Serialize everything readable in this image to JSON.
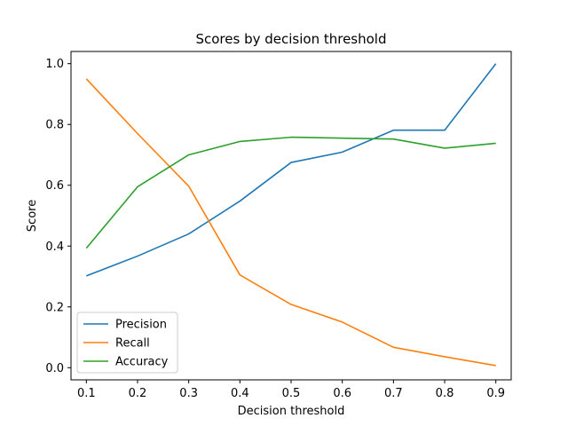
{
  "chart_data": {
    "type": "line",
    "title": "Scores by decision threshold",
    "xlabel": "Decision threshold",
    "ylabel": "Score",
    "x": [
      0.1,
      0.2,
      0.3,
      0.4,
      0.5,
      0.6,
      0.7,
      0.8,
      0.9
    ],
    "x_tick_labels": [
      "0.1",
      "0.2",
      "0.3",
      "0.4",
      "0.5",
      "0.6",
      "0.7",
      "0.8",
      "0.9"
    ],
    "xlim": [
      0.07,
      0.93
    ],
    "ylim": [
      -0.04,
      1.04
    ],
    "y_ticks": [
      0.0,
      0.2,
      0.4,
      0.6,
      0.8,
      1.0
    ],
    "y_tick_labels": [
      "0.0",
      "0.2",
      "0.4",
      "0.6",
      "0.8",
      "1.0"
    ],
    "grid": false,
    "legend_position": "lower-left",
    "series": [
      {
        "name": "Precision",
        "color": "#1f77b4",
        "values": [
          0.302,
          0.367,
          0.44,
          0.548,
          0.675,
          0.709,
          0.781,
          0.781,
          1.0
        ]
      },
      {
        "name": "Recall",
        "color": "#ff7f0e",
        "values": [
          0.95,
          0.77,
          0.597,
          0.305,
          0.208,
          0.15,
          0.067,
          0.036,
          0.007
        ]
      },
      {
        "name": "Accuracy",
        "color": "#2ca02c",
        "values": [
          0.393,
          0.595,
          0.7,
          0.744,
          0.758,
          0.755,
          0.752,
          0.722,
          0.738
        ]
      }
    ]
  }
}
